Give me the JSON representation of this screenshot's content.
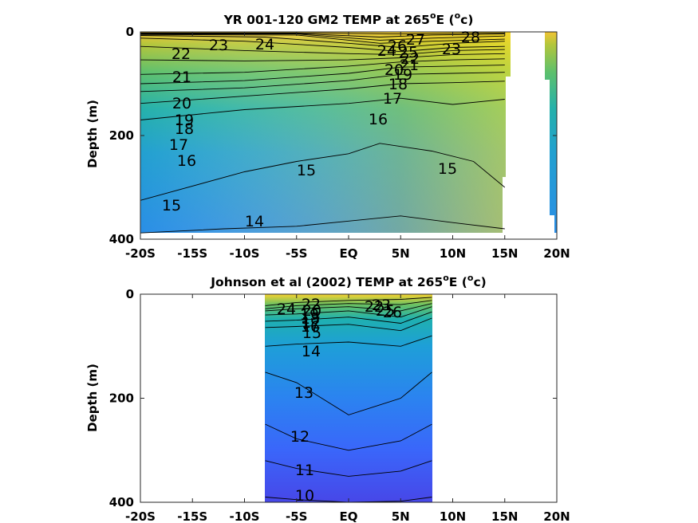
{
  "chart_data": [
    {
      "type": "contour",
      "title": "YR 001-120 GM2 TEMP at 265",
      "title_sup": "o",
      "title_mid": "E (",
      "title_sup2": "o",
      "title_end": "c)",
      "ylabel": "Depth (m)",
      "xlim": [
        -20,
        20
      ],
      "ylim": [
        400,
        0
      ],
      "x_ticks": [
        -20,
        -15,
        -10,
        -5,
        0,
        5,
        10,
        15,
        20
      ],
      "x_tick_labels": [
        "-20S",
        "-15S",
        "-10S",
        "-5S",
        "EQ",
        "5N",
        "10N",
        "15N",
        "20N"
      ],
      "y_ticks": [
        0,
        200,
        400
      ],
      "y_tick_labels": [
        "0",
        "200",
        "400"
      ],
      "data_extent": {
        "lat": [
          -19.8,
          19.8
        ],
        "depth": [
          0,
          388
        ]
      },
      "isotherms": [
        {
          "value": 28,
          "depth": [
            {
              "x": -20,
              "y": 2
            },
            {
              "x": -5,
              "y": 2
            },
            {
              "x": 5,
              "y": 4
            },
            {
              "x": 15,
              "y": 2
            }
          ]
        },
        {
          "value": 27,
          "depth": [
            {
              "x": -20,
              "y": 3
            },
            {
              "x": -5,
              "y": 3
            },
            {
              "x": 3,
              "y": 10
            },
            {
              "x": 8,
              "y": 6
            },
            {
              "x": 15,
              "y": 4
            }
          ]
        },
        {
          "value": 26,
          "depth": [
            {
              "x": -20,
              "y": 4
            },
            {
              "x": -5,
              "y": 4
            },
            {
              "x": 3,
              "y": 16
            },
            {
              "x": 8,
              "y": 12
            },
            {
              "x": 15,
              "y": 8
            }
          ]
        },
        {
          "value": 25,
          "depth": [
            {
              "x": -20,
              "y": 5
            },
            {
              "x": -5,
              "y": 6
            },
            {
              "x": 3,
              "y": 22
            },
            {
              "x": 8,
              "y": 18
            },
            {
              "x": 15,
              "y": 14
            }
          ]
        },
        {
          "value": 24,
          "depth": [
            {
              "x": -20,
              "y": 7
            },
            {
              "x": -8,
              "y": 10
            },
            {
              "x": 0,
              "y": 22
            },
            {
              "x": 5,
              "y": 30
            },
            {
              "x": 10,
              "y": 22
            },
            {
              "x": 15,
              "y": 18
            }
          ]
        },
        {
          "value": 23,
          "depth": [
            {
              "x": -20,
              "y": 12
            },
            {
              "x": -10,
              "y": 18
            },
            {
              "x": 0,
              "y": 30
            },
            {
              "x": 5,
              "y": 38
            },
            {
              "x": 10,
              "y": 30
            },
            {
              "x": 15,
              "y": 28
            }
          ]
        },
        {
          "value": 22,
          "depth": [
            {
              "x": -20,
              "y": 28
            },
            {
              "x": -10,
              "y": 36
            },
            {
              "x": 0,
              "y": 42
            },
            {
              "x": 5,
              "y": 44
            },
            {
              "x": 10,
              "y": 36
            },
            {
              "x": 15,
              "y": 34
            }
          ]
        },
        {
          "value": 21,
          "depth": [
            {
              "x": -20,
              "y": 54
            },
            {
              "x": -10,
              "y": 56
            },
            {
              "x": 0,
              "y": 54
            },
            {
              "x": 5,
              "y": 50
            },
            {
              "x": 10,
              "y": 44
            },
            {
              "x": 15,
              "y": 42
            }
          ]
        },
        {
          "value": 20,
          "depth": [
            {
              "x": -20,
              "y": 82
            },
            {
              "x": -10,
              "y": 78
            },
            {
              "x": 0,
              "y": 66
            },
            {
              "x": 5,
              "y": 58
            },
            {
              "x": 10,
              "y": 54
            },
            {
              "x": 15,
              "y": 52
            }
          ]
        },
        {
          "value": 19,
          "depth": [
            {
              "x": -20,
              "y": 100
            },
            {
              "x": -10,
              "y": 94
            },
            {
              "x": 0,
              "y": 80
            },
            {
              "x": 5,
              "y": 68
            },
            {
              "x": 10,
              "y": 66
            },
            {
              "x": 15,
              "y": 64
            }
          ]
        },
        {
          "value": 18,
          "depth": [
            {
              "x": -20,
              "y": 115
            },
            {
              "x": -10,
              "y": 108
            },
            {
              "x": 0,
              "y": 94
            },
            {
              "x": 5,
              "y": 82
            },
            {
              "x": 10,
              "y": 80
            },
            {
              "x": 15,
              "y": 78
            }
          ]
        },
        {
          "value": 17,
          "depth": [
            {
              "x": -20,
              "y": 138
            },
            {
              "x": -10,
              "y": 124
            },
            {
              "x": 0,
              "y": 110
            },
            {
              "x": 5,
              "y": 100
            },
            {
              "x": 10,
              "y": 98
            },
            {
              "x": 15,
              "y": 95
            }
          ]
        },
        {
          "value": 16,
          "depth": [
            {
              "x": -20,
              "y": 170
            },
            {
              "x": -10,
              "y": 150
            },
            {
              "x": 0,
              "y": 138
            },
            {
              "x": 5,
              "y": 128
            },
            {
              "x": 10,
              "y": 140
            },
            {
              "x": 15,
              "y": 130
            }
          ]
        },
        {
          "value": 15,
          "depth": [
            {
              "x": -20,
              "y": 325
            },
            {
              "x": -10,
              "y": 270
            },
            {
              "x": -5,
              "y": 250
            },
            {
              "x": 0,
              "y": 235
            },
            {
              "x": 3,
              "y": 215
            },
            {
              "x": 8,
              "y": 230
            },
            {
              "x": 12,
              "y": 250
            },
            {
              "x": 15,
              "y": 300
            }
          ]
        },
        {
          "value": 14,
          "depth": [
            {
              "x": -20,
              "y": 388
            },
            {
              "x": -12,
              "y": 380
            },
            {
              "x": -5,
              "y": 375
            },
            {
              "x": 0,
              "y": 365
            },
            {
              "x": 5,
              "y": 355
            },
            {
              "x": 10,
              "y": 368
            },
            {
              "x": 15,
              "y": 380
            }
          ]
        }
      ],
      "contour_labels": [
        "28",
        "27",
        "26",
        "25",
        "24",
        "24",
        "23",
        "23",
        "22",
        "21",
        "20",
        "20",
        "19",
        "19",
        "18",
        "18",
        "17",
        "17",
        "16",
        "16",
        "15",
        "15",
        "15",
        "14",
        "22",
        "21"
      ]
    },
    {
      "type": "contour",
      "title": "Johnson et al (2002) TEMP at 265",
      "title_sup": "o",
      "title_mid": "E (",
      "title_sup2": "o",
      "title_end": "c)",
      "ylabel": "Depth (m)",
      "xlim": [
        -20,
        20
      ],
      "ylim": [
        400,
        0
      ],
      "x_ticks": [
        -20,
        -15,
        -10,
        -5,
        0,
        5,
        10,
        15,
        20
      ],
      "x_tick_labels": [
        "-20S",
        "-15S",
        "-10S",
        "-5S",
        "EQ",
        "5N",
        "10N",
        "15N",
        "20N"
      ],
      "y_ticks": [
        0,
        200,
        400
      ],
      "y_tick_labels": [
        "0",
        "200",
        "400"
      ],
      "data_extent": {
        "lat": [
          -8,
          8
        ],
        "depth": [
          0,
          400
        ]
      },
      "isotherms": [
        {
          "value": 24,
          "depth": [
            {
              "x": -8,
              "y": 22
            },
            {
              "x": -5,
              "y": 16
            },
            {
              "x": 0,
              "y": 12
            },
            {
              "x": 5,
              "y": 10
            },
            {
              "x": 8,
              "y": 6
            }
          ]
        },
        {
          "value": 22,
          "depth": [
            {
              "x": -8,
              "y": 28
            },
            {
              "x": -5,
              "y": 22
            },
            {
              "x": 0,
              "y": 18
            },
            {
              "x": 5,
              "y": 20
            },
            {
              "x": 8,
              "y": 12
            }
          ]
        },
        {
          "value": 20,
          "depth": [
            {
              "x": -8,
              "y": 32
            },
            {
              "x": -5,
              "y": 28
            },
            {
              "x": 0,
              "y": 24
            },
            {
              "x": 5,
              "y": 32
            },
            {
              "x": 8,
              "y": 18
            }
          ]
        },
        {
          "value": 18,
          "depth": [
            {
              "x": -8,
              "y": 40
            },
            {
              "x": -5,
              "y": 38
            },
            {
              "x": 0,
              "y": 32
            },
            {
              "x": 5,
              "y": 44
            },
            {
              "x": 8,
              "y": 24
            }
          ]
        },
        {
          "value": 16,
          "depth": [
            {
              "x": -8,
              "y": 52
            },
            {
              "x": -5,
              "y": 50
            },
            {
              "x": 0,
              "y": 44
            },
            {
              "x": 5,
              "y": 56
            },
            {
              "x": 8,
              "y": 34
            }
          ]
        },
        {
          "value": 15,
          "depth": [
            {
              "x": -8,
              "y": 64
            },
            {
              "x": -5,
              "y": 62
            },
            {
              "x": 0,
              "y": 58
            },
            {
              "x": 5,
              "y": 70
            },
            {
              "x": 8,
              "y": 46
            }
          ]
        },
        {
          "value": 14,
          "depth": [
            {
              "x": -8,
              "y": 100
            },
            {
              "x": -5,
              "y": 96
            },
            {
              "x": 0,
              "y": 92
            },
            {
              "x": 5,
              "y": 100
            },
            {
              "x": 8,
              "y": 80
            }
          ]
        },
        {
          "value": 13,
          "depth": [
            {
              "x": -8,
              "y": 150
            },
            {
              "x": -5,
              "y": 170
            },
            {
              "x": 0,
              "y": 232
            },
            {
              "x": 5,
              "y": 200
            },
            {
              "x": 8,
              "y": 150
            }
          ]
        },
        {
          "value": 12,
          "depth": [
            {
              "x": -8,
              "y": 250
            },
            {
              "x": -5,
              "y": 278
            },
            {
              "x": 0,
              "y": 300
            },
            {
              "x": 5,
              "y": 282
            },
            {
              "x": 8,
              "y": 250
            }
          ]
        },
        {
          "value": 11,
          "depth": [
            {
              "x": -8,
              "y": 320
            },
            {
              "x": -5,
              "y": 335
            },
            {
              "x": 0,
              "y": 350
            },
            {
              "x": 5,
              "y": 340
            },
            {
              "x": 8,
              "y": 320
            }
          ]
        },
        {
          "value": 10,
          "depth": [
            {
              "x": -8,
              "y": 390
            },
            {
              "x": -5,
              "y": 395
            },
            {
              "x": 0,
              "y": 400
            },
            {
              "x": 5,
              "y": 398
            },
            {
              "x": 8,
              "y": 390
            }
          ]
        }
      ],
      "contour_labels": [
        "24",
        "22",
        "20",
        "19",
        "18",
        "17",
        "16",
        "15",
        "14",
        "13",
        "12",
        "11",
        "10",
        "22",
        "23",
        "25",
        "26"
      ]
    }
  ],
  "colormap": [
    "#3e26a8",
    "#4743e8",
    "#3a6dfb",
    "#2c99d4",
    "#17b2b6",
    "#4ec07c",
    "#a5c43a",
    "#e8b932",
    "#fde124"
  ]
}
